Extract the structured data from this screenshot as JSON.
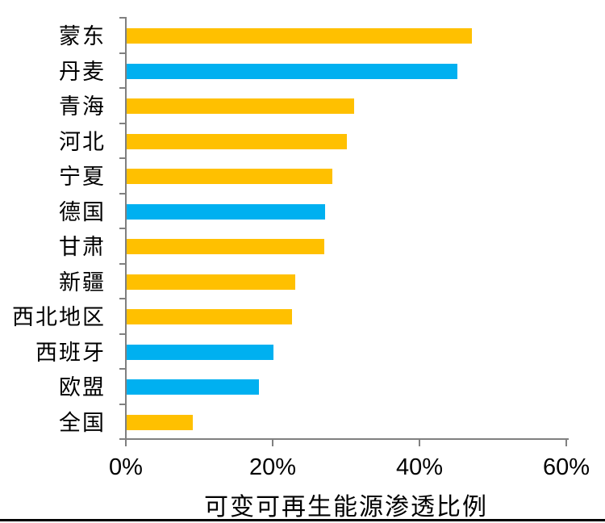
{
  "chart_data": {
    "type": "bar",
    "orientation": "horizontal",
    "title": "",
    "xlabel": "可变可再生能源渗透比例",
    "ylabel": "",
    "xlim": [
      0,
      60
    ],
    "x_tick_labels": [
      "0%",
      "20%",
      "40%",
      "60%"
    ],
    "x_tick_values": [
      0,
      20,
      40,
      60
    ],
    "grid": false,
    "legend": "none",
    "categories": [
      "蒙东",
      "丹麦",
      "青海",
      "河北",
      "宁夏",
      "德国",
      "甘肃",
      "新疆",
      "西北地区",
      "西班牙",
      "欧盟",
      "全国"
    ],
    "values": [
      47,
      45,
      31,
      30,
      28,
      27,
      26.9,
      23,
      22.5,
      20,
      18,
      9
    ],
    "colors": [
      "#FFC000",
      "#00B0F0",
      "#FFC000",
      "#FFC000",
      "#FFC000",
      "#00B0F0",
      "#FFC000",
      "#FFC000",
      "#FFC000",
      "#00B0F0",
      "#00B0F0",
      "#FFC000"
    ],
    "color_meaning": {
      "#FFC000": "chinese-region",
      "#00B0F0": "european-region"
    },
    "axis_color": "#808080"
  }
}
